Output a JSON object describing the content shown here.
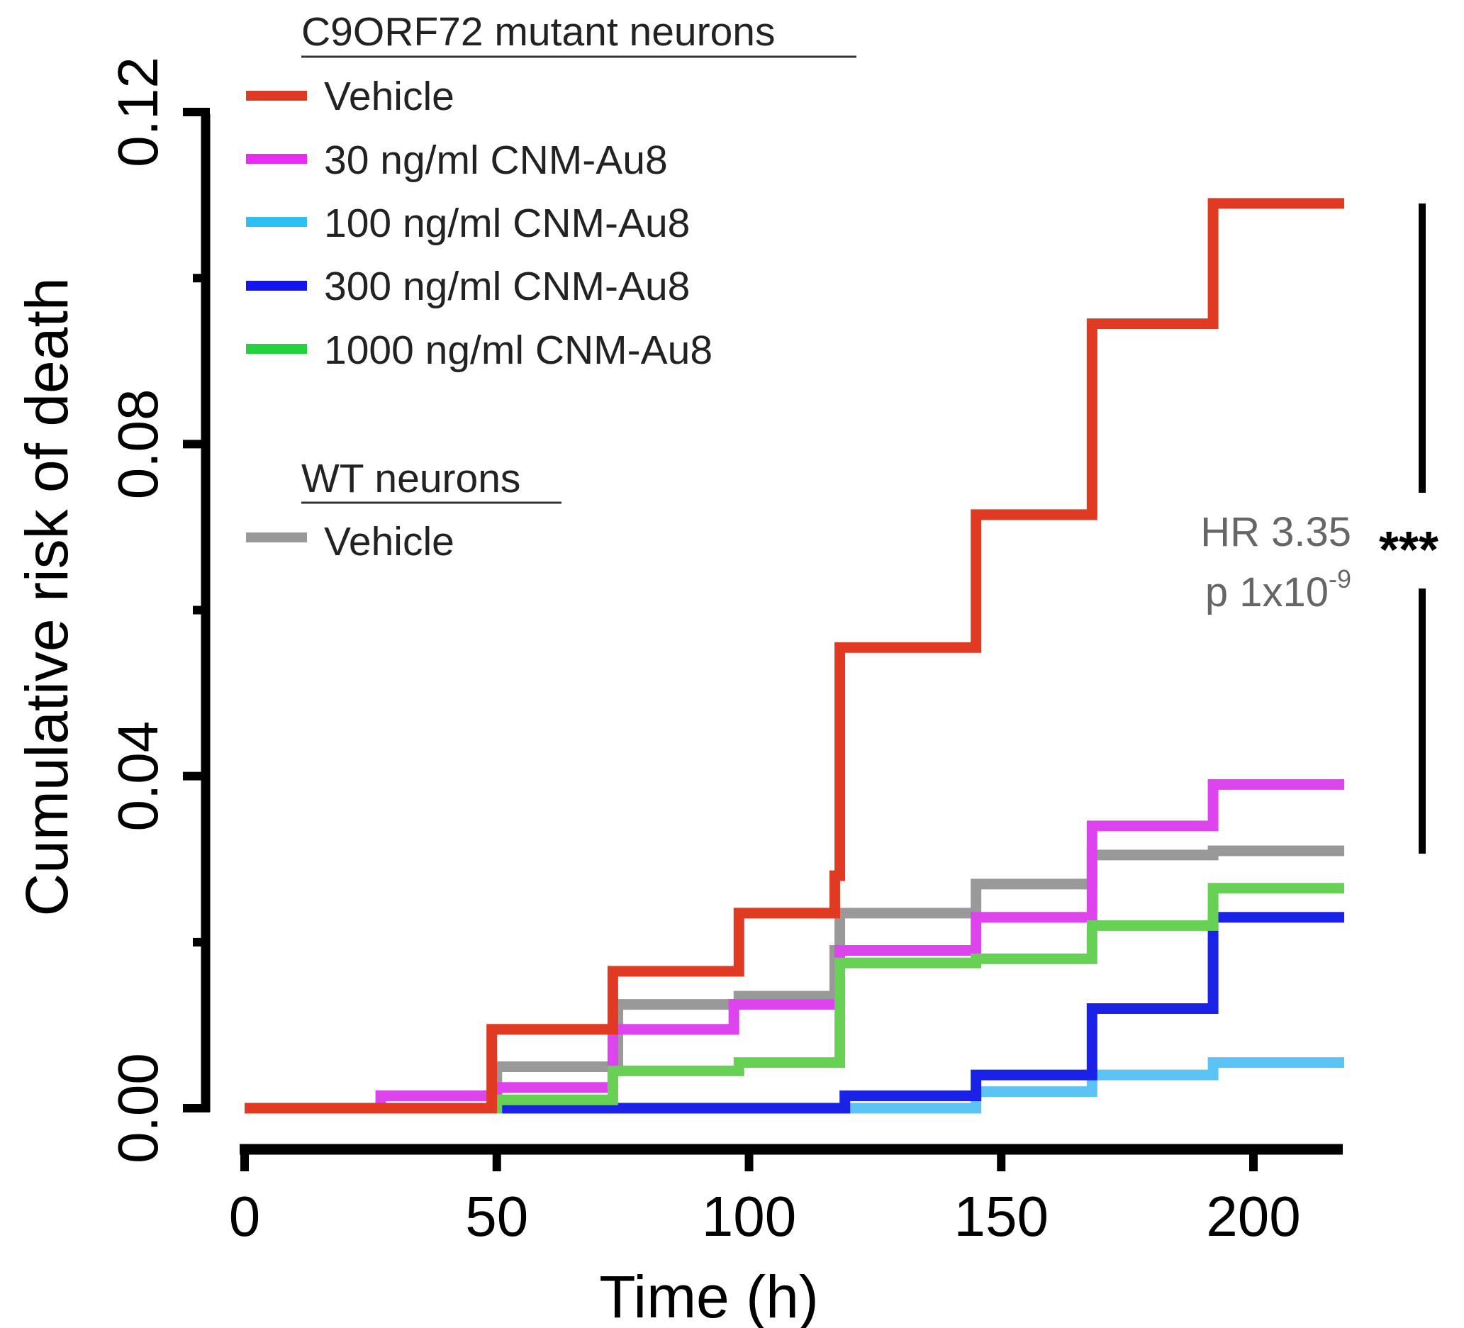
{
  "chart_data": {
    "type": "line",
    "step": true,
    "xlabel": "Time (h)",
    "ylabel": "Cumulative risk of death",
    "xlim": [
      0,
      218
    ],
    "ylim": [
      0,
      0.12
    ],
    "x_ticks": [
      0,
      50,
      100,
      150,
      200
    ],
    "x_tick_labels": [
      "0",
      "50",
      "100",
      "150",
      "200"
    ],
    "y_ticks": [
      0,
      0.04,
      0.08,
      0.12
    ],
    "y_tick_labels": [
      "0.00",
      "0.04",
      "0.08",
      "0.12"
    ],
    "y_minor_ticks": [
      0.02,
      0.06,
      0.1
    ],
    "grid": false,
    "legend_position": "top-left",
    "legend_groups": [
      {
        "title": "C9ORF72 mutant neurons",
        "entries": [
          "Vehicle",
          "30 ng/ml CNM-Au8",
          "100 ng/ml CNM-Au8",
          "300 ng/ml CNM-Au8",
          "1000 ng/ml CNM-Au8"
        ]
      },
      {
        "title": "WT neurons",
        "entries": [
          "Vehicle"
        ]
      }
    ],
    "series": [
      {
        "group": "WT neurons",
        "name": "Vehicle",
        "color": "#999999",
        "points": [
          [
            0,
            0
          ],
          [
            50,
            0.005
          ],
          [
            74,
            0.0125
          ],
          [
            98,
            0.0135
          ],
          [
            117,
            0.019
          ],
          [
            118,
            0.0235
          ],
          [
            145,
            0.027
          ],
          [
            168,
            0.0305
          ],
          [
            192,
            0.031
          ],
          [
            218,
            0.031
          ]
        ]
      },
      {
        "group": "C9ORF72 mutant neurons",
        "name": "100 ng/ml CNM-Au8",
        "color": "#5BC4F5",
        "points": [
          [
            0,
            0
          ],
          [
            145,
            0.002
          ],
          [
            168,
            0.004
          ],
          [
            192,
            0.0055
          ],
          [
            218,
            0.0055
          ]
        ]
      },
      {
        "group": "C9ORF72 mutant neurons",
        "name": "300 ng/ml CNM-Au8",
        "color": "#1B22E8",
        "points": [
          [
            0,
            0
          ],
          [
            119,
            0.0015
          ],
          [
            145,
            0.004
          ],
          [
            168,
            0.012
          ],
          [
            192,
            0.023
          ],
          [
            218,
            0.023
          ]
        ]
      },
      {
        "group": "C9ORF72 mutant neurons",
        "name": "30 ng/ml CNM-Au8",
        "color": "#DD44EE",
        "points": [
          [
            0,
            0
          ],
          [
            27,
            0.0015
          ],
          [
            50,
            0.0025
          ],
          [
            73,
            0.0095
          ],
          [
            97,
            0.0125
          ],
          [
            118,
            0.019
          ],
          [
            145,
            0.023
          ],
          [
            168,
            0.034
          ],
          [
            192,
            0.039
          ],
          [
            218,
            0.039
          ]
        ]
      },
      {
        "group": "C9ORF72 mutant neurons",
        "name": "1000 ng/ml CNM-Au8",
        "color": "#66D155",
        "points": [
          [
            0,
            0
          ],
          [
            50,
            0.001
          ],
          [
            73,
            0.0045
          ],
          [
            98,
            0.0055
          ],
          [
            118,
            0.0175
          ],
          [
            145,
            0.018
          ],
          [
            168,
            0.022
          ],
          [
            192,
            0.0265
          ],
          [
            218,
            0.0265
          ]
        ]
      },
      {
        "group": "C9ORF72 mutant neurons",
        "name": "Vehicle",
        "color": "#E03A22",
        "points": [
          [
            0,
            0
          ],
          [
            49,
            0.0095
          ],
          [
            73,
            0.0165
          ],
          [
            98,
            0.0235
          ],
          [
            117,
            0.028
          ],
          [
            118,
            0.0555
          ],
          [
            145,
            0.0715
          ],
          [
            168,
            0.0945
          ],
          [
            192,
            0.109
          ],
          [
            218,
            0.109
          ]
        ]
      }
    ],
    "annotations": {
      "hr_text": "HR 3.35",
      "p_text_prefix": "p 1x10",
      "p_text_exponent": "-9",
      "significance": "***"
    }
  }
}
